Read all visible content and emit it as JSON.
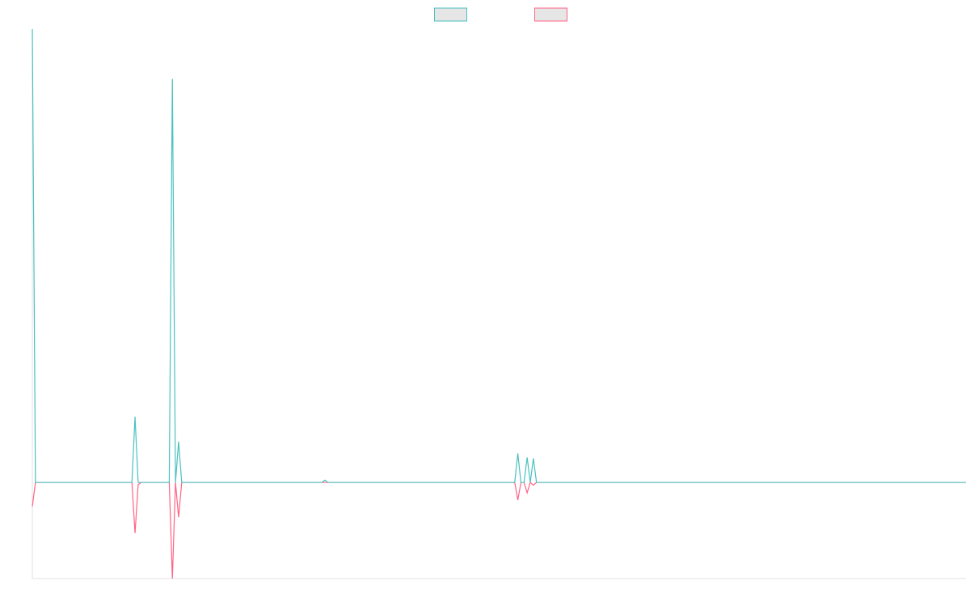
{
  "chart_data": {
    "type": "line",
    "x": [
      0,
      1,
      32,
      33,
      34,
      35,
      44,
      45,
      46,
      47,
      48,
      93,
      94,
      95,
      155,
      156,
      157,
      158,
      159,
      160,
      161,
      162,
      300
    ],
    "xlim": [
      0,
      300
    ],
    "ylim": [
      -21.2,
      100
    ],
    "grid": false,
    "legend": "top",
    "series": [
      {
        "color": "#4bc0c0",
        "values": [
          100,
          0,
          0,
          14.5,
          0,
          0,
          0,
          89,
          0,
          9,
          0,
          0,
          0.5,
          0,
          0,
          6.4,
          0,
          0,
          5.5,
          0,
          5.3,
          0,
          0
        ]
      },
      {
        "color": "#ff6384",
        "values": [
          -5.3,
          0,
          0,
          -11.2,
          -0.5,
          0,
          0,
          -21.2,
          0,
          -7.7,
          0,
          0,
          0,
          0,
          0,
          -3.9,
          0,
          0,
          -2.3,
          0,
          -0.6,
          0,
          0
        ]
      }
    ]
  }
}
